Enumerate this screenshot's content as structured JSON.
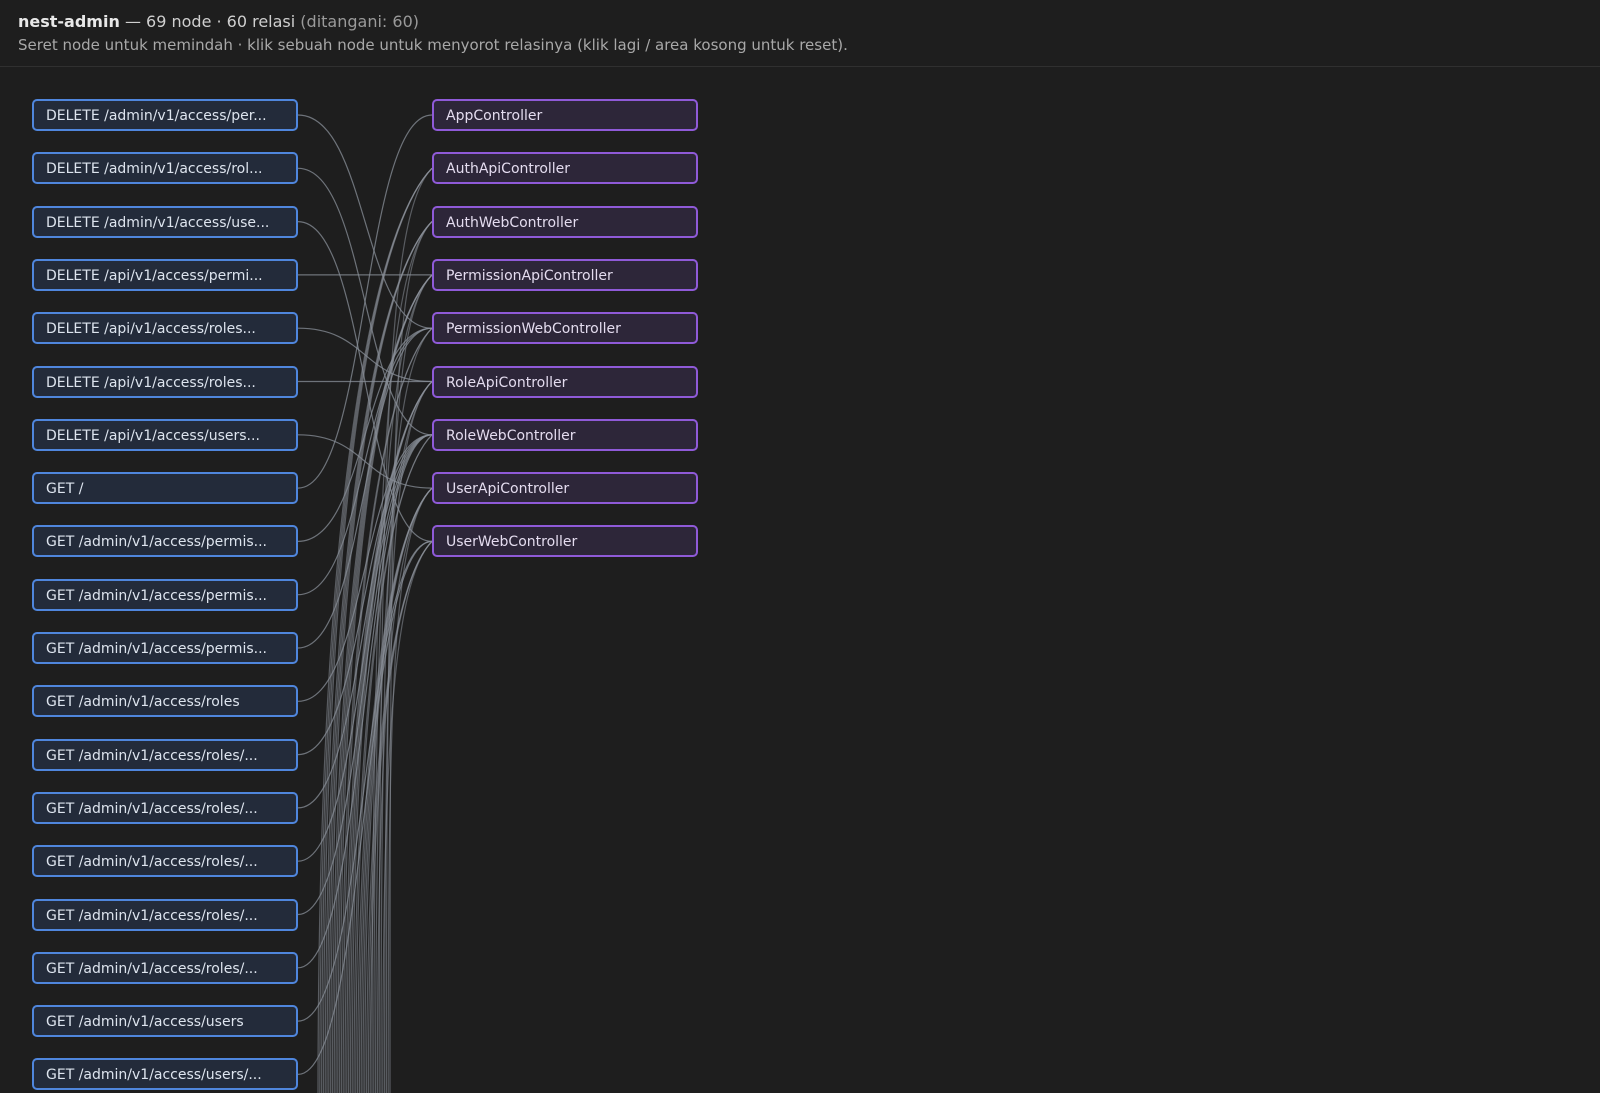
{
  "header": {
    "app_name": "nest-admin",
    "summary": " — 69 node · 60 relasi ",
    "handled": "(ditangani: 60)",
    "hint": "Seret node untuk memindah · klik sebuah node untuk menyorot relasinya (klik lagi / area kosong untuk reset)."
  },
  "colors": {
    "background": "#1e1e1e",
    "route_border": "#4f86dd",
    "controller_border": "#8f5ad8",
    "edge": "#8a9099"
  },
  "routes": [
    "DELETE /admin/v1/access/per...",
    "DELETE /admin/v1/access/rol...",
    "DELETE /admin/v1/access/use...",
    "DELETE /api/v1/access/permi...",
    "DELETE /api/v1/access/roles...",
    "DELETE /api/v1/access/roles...",
    "DELETE /api/v1/access/users...",
    "GET /",
    "GET /admin/v1/access/permis...",
    "GET /admin/v1/access/permis...",
    "GET /admin/v1/access/permis...",
    "GET /admin/v1/access/roles",
    "GET /admin/v1/access/roles/...",
    "GET /admin/v1/access/roles/...",
    "GET /admin/v1/access/roles/...",
    "GET /admin/v1/access/roles/...",
    "GET /admin/v1/access/roles/...",
    "GET /admin/v1/access/users",
    "GET /admin/v1/access/users/..."
  ],
  "controllers": [
    "AppController",
    "AuthApiController",
    "AuthWebController",
    "PermissionApiController",
    "PermissionWebController",
    "RoleApiController",
    "RoleWebController",
    "UserApiController",
    "UserWebController"
  ],
  "edges": [
    [
      0,
      4
    ],
    [
      1,
      6
    ],
    [
      2,
      8
    ],
    [
      3,
      3
    ],
    [
      4,
      5
    ],
    [
      5,
      5
    ],
    [
      6,
      7
    ],
    [
      7,
      0
    ],
    [
      8,
      4
    ],
    [
      9,
      4
    ],
    [
      10,
      4
    ],
    [
      11,
      6
    ],
    [
      12,
      6
    ],
    [
      13,
      6
    ],
    [
      14,
      6
    ],
    [
      15,
      6
    ],
    [
      16,
      6
    ],
    [
      17,
      8
    ],
    [
      18,
      8
    ]
  ],
  "offscreen_edge_targets": [
    1,
    1,
    1,
    1,
    2,
    2,
    2,
    2,
    3,
    3,
    3,
    3,
    3,
    4,
    4,
    5,
    5,
    5,
    5,
    5,
    6,
    6,
    7,
    7,
    7,
    7,
    7,
    8,
    8,
    8,
    2,
    3,
    5,
    7,
    1,
    4,
    8,
    5,
    3,
    7,
    2
  ]
}
